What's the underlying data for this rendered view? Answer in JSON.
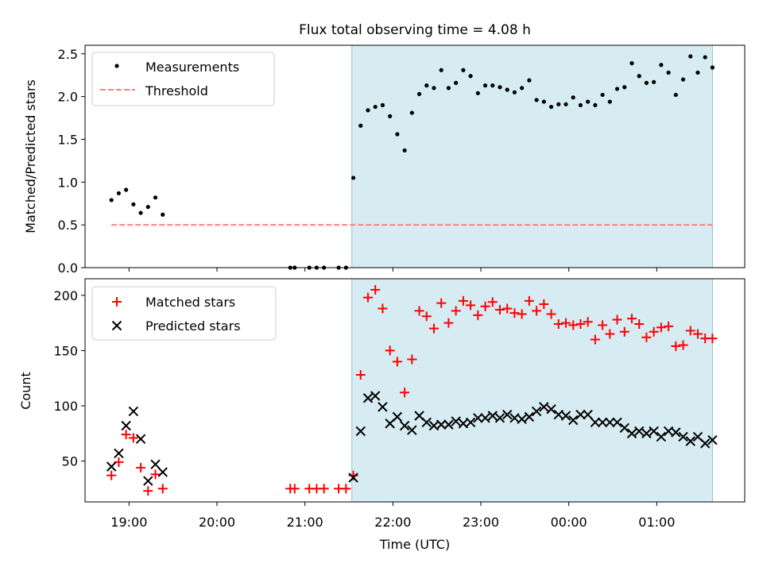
{
  "chart_data": [
    {
      "type": "scatter",
      "title": "Flux total observing time = 4.08 h",
      "xlabel": "",
      "ylabel": "Matched/Predicted stars",
      "xlim": [
        "18:30",
        "02:00"
      ],
      "ylim": [
        0,
        2.6
      ],
      "yticks": [
        "0.0",
        "0.5",
        "1.0",
        "1.5",
        "2.0",
        "2.5"
      ],
      "shaded_interval": [
        "21:32",
        "01:38"
      ],
      "threshold": 0.5,
      "legend_position": "top-left",
      "legend": [
        "Measurements",
        "Threshold"
      ],
      "series": [
        {
          "name": "Measurements",
          "marker": "dot",
          "color": "#000000",
          "points": [
            [
              "18:48",
              0.79
            ],
            [
              "18:53",
              0.87
            ],
            [
              "18:58",
              0.91
            ],
            [
              "19:03",
              0.74
            ],
            [
              "19:08",
              0.64
            ],
            [
              "19:13",
              0.71
            ],
            [
              "19:18",
              0.82
            ],
            [
              "19:23",
              0.62
            ],
            [
              "20:50",
              0.0
            ],
            [
              "20:53",
              0.0
            ],
            [
              "21:03",
              0.0
            ],
            [
              "21:08",
              0.0
            ],
            [
              "21:13",
              0.0
            ],
            [
              "21:23",
              0.0
            ],
            [
              "21:28",
              0.0
            ],
            [
              "21:33",
              1.05
            ],
            [
              "21:38",
              1.66
            ],
            [
              "21:43",
              1.84
            ],
            [
              "21:48",
              1.88
            ],
            [
              "21:53",
              1.9
            ],
            [
              "21:58",
              1.77
            ],
            [
              "22:03",
              1.56
            ],
            [
              "22:08",
              1.37
            ],
            [
              "22:13",
              1.81
            ],
            [
              "22:18",
              2.03
            ],
            [
              "22:23",
              2.13
            ],
            [
              "22:28",
              2.1
            ],
            [
              "22:33",
              2.31
            ],
            [
              "22:38",
              2.1
            ],
            [
              "22:43",
              2.16
            ],
            [
              "22:48",
              2.31
            ],
            [
              "22:53",
              2.24
            ],
            [
              "22:58",
              2.04
            ],
            [
              "23:03",
              2.13
            ],
            [
              "23:08",
              2.13
            ],
            [
              "23:13",
              2.11
            ],
            [
              "23:18",
              2.08
            ],
            [
              "23:23",
              2.05
            ],
            [
              "23:28",
              2.1
            ],
            [
              "23:33",
              2.19
            ],
            [
              "23:38",
              1.96
            ],
            [
              "23:43",
              1.94
            ],
            [
              "23:48",
              1.88
            ],
            [
              "23:53",
              1.91
            ],
            [
              "23:58",
              1.91
            ],
            [
              "00:03",
              1.99
            ],
            [
              "00:08",
              1.9
            ],
            [
              "00:13",
              1.94
            ],
            [
              "00:18",
              1.9
            ],
            [
              "00:23",
              2.02
            ],
            [
              "00:28",
              1.94
            ],
            [
              "00:33",
              2.09
            ],
            [
              "00:38",
              2.11
            ],
            [
              "00:43",
              2.39
            ],
            [
              "00:48",
              2.24
            ],
            [
              "00:53",
              2.16
            ],
            [
              "00:58",
              2.17
            ],
            [
              "01:03",
              2.37
            ],
            [
              "01:08",
              2.28
            ],
            [
              "01:13",
              2.02
            ],
            [
              "01:18",
              2.2
            ],
            [
              "01:23",
              2.47
            ],
            [
              "01:28",
              2.28
            ],
            [
              "01:33",
              2.46
            ],
            [
              "01:38",
              2.34
            ]
          ]
        },
        {
          "name": "Threshold",
          "style": "dashed",
          "color": "#ff7f7f",
          "points": [
            [
              "18:48",
              0.5
            ],
            [
              "01:38",
              0.5
            ]
          ]
        }
      ]
    },
    {
      "type": "scatter",
      "title": "",
      "xlabel": "Time (UTC)",
      "ylabel": "Count",
      "xlim": [
        "18:30",
        "02:00"
      ],
      "ylim": [
        13,
        215
      ],
      "yticks": [
        "50",
        "100",
        "150",
        "200"
      ],
      "xticks": [
        "19:00",
        "20:00",
        "21:00",
        "22:00",
        "23:00",
        "00:00",
        "01:00"
      ],
      "shaded_interval": [
        "21:32",
        "01:38"
      ],
      "legend_position": "top-left",
      "legend": [
        "Matched stars",
        "Predicted stars"
      ],
      "series": [
        {
          "name": "Matched stars",
          "marker": "plus",
          "color": "#ff0000",
          "points": [
            [
              "18:48",
              37
            ],
            [
              "18:53",
              49
            ],
            [
              "18:58",
              74
            ],
            [
              "19:03",
              71
            ],
            [
              "19:08",
              44
            ],
            [
              "19:13",
              23
            ],
            [
              "19:18",
              38
            ],
            [
              "19:23",
              25
            ],
            [
              "20:50",
              25
            ],
            [
              "20:53",
              25
            ],
            [
              "21:03",
              25
            ],
            [
              "21:08",
              25
            ],
            [
              "21:13",
              25
            ],
            [
              "21:23",
              25
            ],
            [
              "21:28",
              25
            ],
            [
              "21:33",
              37
            ],
            [
              "21:38",
              128
            ],
            [
              "21:43",
              198
            ],
            [
              "21:48",
              205
            ],
            [
              "21:53",
              188
            ],
            [
              "21:58",
              150
            ],
            [
              "22:03",
              140
            ],
            [
              "22:08",
              112
            ],
            [
              "22:13",
              142
            ],
            [
              "22:18",
              186
            ],
            [
              "22:23",
              181
            ],
            [
              "22:28",
              170
            ],
            [
              "22:33",
              193
            ],
            [
              "22:38",
              175
            ],
            [
              "22:43",
              186
            ],
            [
              "22:48",
              195
            ],
            [
              "22:53",
              191
            ],
            [
              "22:58",
              182
            ],
            [
              "23:03",
              190
            ],
            [
              "23:08",
              194
            ],
            [
              "23:13",
              187
            ],
            [
              "23:18",
              188
            ],
            [
              "23:23",
              184
            ],
            [
              "23:28",
              183
            ],
            [
              "23:33",
              195
            ],
            [
              "23:38",
              186
            ],
            [
              "23:43",
              192
            ],
            [
              "23:48",
              183
            ],
            [
              "23:53",
              174
            ],
            [
              "23:58",
              175
            ],
            [
              "00:03",
              173
            ],
            [
              "00:08",
              174
            ],
            [
              "00:13",
              176
            ],
            [
              "00:18",
              160
            ],
            [
              "00:23",
              173
            ],
            [
              "00:28",
              165
            ],
            [
              "00:33",
              178
            ],
            [
              "00:38",
              167
            ],
            [
              "00:43",
              179
            ],
            [
              "00:48",
              174
            ],
            [
              "00:53",
              162
            ],
            [
              "00:58",
              167
            ],
            [
              "01:03",
              171
            ],
            [
              "01:08",
              172
            ],
            [
              "01:13",
              154
            ],
            [
              "01:18",
              155
            ],
            [
              "01:23",
              168
            ],
            [
              "01:28",
              165
            ],
            [
              "01:33",
              161
            ],
            [
              "01:38",
              161
            ]
          ]
        },
        {
          "name": "Predicted stars",
          "marker": "x",
          "color": "#000000",
          "points": [
            [
              "18:48",
              45
            ],
            [
              "18:53",
              57
            ],
            [
              "18:58",
              82
            ],
            [
              "19:03",
              95
            ],
            [
              "19:08",
              70
            ],
            [
              "19:13",
              32
            ],
            [
              "19:18",
              47
            ],
            [
              "19:23",
              40
            ],
            [
              "21:33",
              35
            ],
            [
              "21:38",
              77
            ],
            [
              "21:43",
              107
            ],
            [
              "21:48",
              109
            ],
            [
              "21:53",
              99
            ],
            [
              "21:58",
              84
            ],
            [
              "22:03",
              90
            ],
            [
              "22:08",
              82
            ],
            [
              "22:13",
              78
            ],
            [
              "22:18",
              91
            ],
            [
              "22:23",
              85
            ],
            [
              "22:28",
              82
            ],
            [
              "22:33",
              83
            ],
            [
              "22:38",
              83
            ],
            [
              "22:43",
              86
            ],
            [
              "22:48",
              84
            ],
            [
              "22:53",
              85
            ],
            [
              "22:58",
              89
            ],
            [
              "23:03",
              89
            ],
            [
              "23:08",
              91
            ],
            [
              "23:13",
              89
            ],
            [
              "23:18",
              92
            ],
            [
              "23:23",
              89
            ],
            [
              "23:28",
              88
            ],
            [
              "23:33",
              90
            ],
            [
              "23:38",
              95
            ],
            [
              "23:43",
              99
            ],
            [
              "23:48",
              97
            ],
            [
              "23:53",
              92
            ],
            [
              "23:58",
              91
            ],
            [
              "00:03",
              87
            ],
            [
              "00:08",
              92
            ],
            [
              "00:13",
              92
            ],
            [
              "00:18",
              85
            ],
            [
              "00:23",
              85
            ],
            [
              "00:28",
              85
            ],
            [
              "00:33",
              85
            ],
            [
              "00:38",
              80
            ],
            [
              "00:43",
              75
            ],
            [
              "00:48",
              77
            ],
            [
              "00:53",
              75
            ],
            [
              "00:58",
              77
            ],
            [
              "01:03",
              72
            ],
            [
              "01:08",
              77
            ],
            [
              "01:13",
              76
            ],
            [
              "01:18",
              72
            ],
            [
              "01:23",
              68
            ],
            [
              "01:28",
              72
            ],
            [
              "01:33",
              66
            ],
            [
              "01:38",
              69
            ]
          ]
        }
      ]
    }
  ],
  "colors": {
    "shade": "#add8e6",
    "matched": "#ff0000",
    "predicted": "#000000",
    "threshold": "#ff7f7f"
  }
}
